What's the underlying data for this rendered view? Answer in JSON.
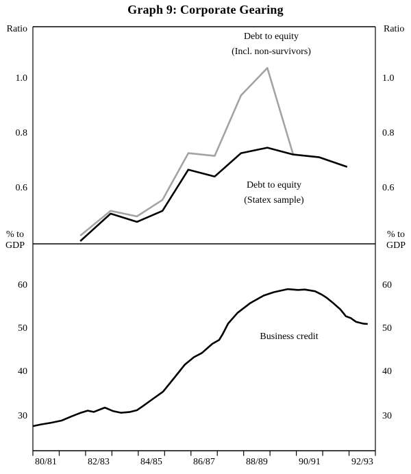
{
  "title": "Graph 9: Corporate Gearing",
  "colors": {
    "line_black": "#000000",
    "line_gray": "#a3a3a3",
    "frame": "#000000",
    "text": "#000000"
  },
  "top_panel": {
    "axis_label_left": "Ratio",
    "axis_label_right": "Ratio",
    "yticks": [
      "1.0",
      "0.8",
      "0.6"
    ],
    "legend_nonsurvivors_line1": "Debt to equity",
    "legend_nonsurvivors_line2": "(Incl. non-survivors)",
    "legend_statex_line1": "Debt to equity",
    "legend_statex_line2": "(Statex sample)"
  },
  "bottom_panel": {
    "axis_label_left_line1": "% to",
    "axis_label_left_line2": "GDP",
    "axis_label_right_line1": "% to",
    "axis_label_right_line2": "GDP",
    "yticks": [
      "60",
      "50",
      "40",
      "30"
    ],
    "annotation": "Business credit"
  },
  "x_axis": {
    "labels": [
      "80/81",
      "82/83",
      "84/85",
      "86/87",
      "88/89",
      "90/91",
      "92/93"
    ],
    "years_span": 13
  },
  "chart_data": [
    {
      "type": "line",
      "panel": "top",
      "title": "Corporate debt to equity",
      "ylabel": "Ratio",
      "ylim": [
        0.4,
        1.19
      ],
      "x_unit": "years since start of 1980/81",
      "series": [
        {
          "name": "Debt to equity (Incl. non-survivors)",
          "color_key": "line_gray",
          "x": [
            1.8,
            2.95,
            3.95,
            4.92,
            5.9,
            6.9,
            7.9,
            8.9,
            9.88
          ],
          "values": [
            0.43,
            0.52,
            0.5,
            0.56,
            0.73,
            0.72,
            0.94,
            1.04,
            0.725
          ]
        },
        {
          "name": "Debt to equity (Statex sample)",
          "color_key": "line_black",
          "x": [
            1.8,
            2.95,
            3.95,
            4.92,
            5.9,
            6.9,
            7.9,
            8.9,
            9.88,
            10.87,
            11.93
          ],
          "values": [
            0.41,
            0.51,
            0.48,
            0.52,
            0.67,
            0.645,
            0.73,
            0.75,
            0.725,
            0.715,
            0.68
          ]
        }
      ]
    },
    {
      "type": "line",
      "panel": "bottom",
      "title": "Business credit",
      "ylabel": "% to GDP",
      "ylim": [
        22,
        70
      ],
      "x_unit": "years since start of 1980/81",
      "series": [
        {
          "name": "Business credit",
          "color_key": "line_black",
          "x": [
            0,
            0.31,
            0.7,
            1.09,
            1.48,
            1.82,
            2.08,
            2.31,
            2.6,
            2.73,
            3.04,
            3.35,
            3.69,
            3.95,
            4.21,
            4.55,
            4.94,
            5.38,
            5.77,
            6.11,
            6.42,
            6.81,
            7.07,
            7.2,
            7.41,
            7.77,
            8.24,
            8.76,
            9.15,
            9.67,
            10.06,
            10.32,
            10.71,
            10.97,
            11.15,
            11.41,
            11.67,
            11.88,
            12.06,
            12.27,
            12.53,
            12.71
          ],
          "values": [
            27.7,
            28.1,
            28.5,
            29.0,
            30.0,
            30.8,
            31.3,
            31.0,
            31.7,
            32.0,
            31.2,
            30.8,
            31.0,
            31.4,
            32.5,
            34.0,
            35.7,
            39.0,
            42.0,
            43.7,
            44.7,
            46.8,
            47.7,
            49.0,
            51.5,
            54.0,
            56.2,
            58.0,
            58.8,
            59.5,
            59.3,
            59.4,
            59.0,
            58.2,
            57.5,
            56.2,
            54.8,
            53.2,
            52.8,
            51.9,
            51.5,
            51.4
          ]
        }
      ]
    }
  ]
}
